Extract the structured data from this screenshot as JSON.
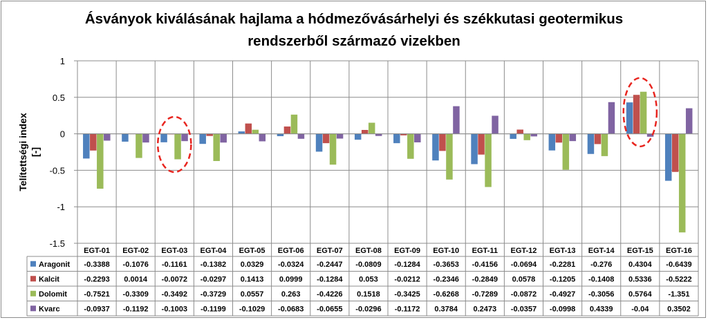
{
  "chart_data": {
    "type": "bar",
    "title_lines": [
      "Ásványok kiválásának hajlama a hódmezővásárhelyi és székkutasi geotermikus",
      "rendszerből származó vizekben"
    ],
    "ylabel_lines": [
      "Telítettségi index",
      "[-]"
    ],
    "ylim": [
      -1.5,
      1
    ],
    "yticks": [
      "1",
      "0.5",
      "0",
      "-0.5",
      "-1",
      "-1.5"
    ],
    "ytick_values": [
      1,
      0.5,
      0,
      -0.5,
      -1,
      -1.5
    ],
    "grid": true,
    "legend": "data-table",
    "categories": [
      "EGT-01",
      "EGT-02",
      "EGT-03",
      "EGT-04",
      "EGT-05",
      "EGT-06",
      "EGT-07",
      "EGT-08",
      "EGT-09",
      "EGT-10",
      "EGT-11",
      "EGT-12",
      "EGT-13",
      "EGT-14",
      "EGT-15",
      "EGT-16"
    ],
    "series": [
      {
        "name": "Aragonit",
        "color": "#4f81bd",
        "values": [
          -0.3388,
          -0.1076,
          -0.1161,
          -0.1382,
          0.0329,
          -0.0324,
          -0.2447,
          -0.0809,
          -0.1284,
          -0.3653,
          -0.4156,
          -0.0694,
          -0.2281,
          -0.276,
          0.4304,
          -0.6439
        ],
        "labels": [
          "-0.3388",
          "-0.1076",
          "-0.1161",
          "-0.1382",
          "0.0329",
          "-0.0324",
          "-0.2447",
          "-0.0809",
          "-0.1284",
          "-0.3653",
          "-0.4156",
          "-0.0694",
          "-0.2281",
          "-0.276",
          "0.4304",
          "-0.6439"
        ]
      },
      {
        "name": "Kalcit",
        "color": "#c0504d",
        "values": [
          -0.2293,
          0.0014,
          -0.0072,
          -0.0297,
          0.1413,
          0.0999,
          -0.1284,
          0.053,
          -0.0212,
          -0.2346,
          -0.2849,
          0.0578,
          -0.1205,
          -0.1408,
          0.5336,
          -0.5222
        ],
        "labels": [
          "-0.2293",
          "0.0014",
          "-0.0072",
          "-0.0297",
          "0.1413",
          "0.0999",
          "-0.1284",
          "0.053",
          "-0.0212",
          "-0.2346",
          "-0.2849",
          "0.0578",
          "-0.1205",
          "-0.1408",
          "0.5336",
          "-0.5222"
        ]
      },
      {
        "name": "Dolomit",
        "color": "#9bbb59",
        "values": [
          -0.7521,
          -0.3309,
          -0.3492,
          -0.3729,
          0.0557,
          0.263,
          -0.4226,
          0.1518,
          -0.3425,
          -0.6268,
          -0.7289,
          -0.0872,
          -0.4927,
          -0.3056,
          0.5764,
          -1.351
        ],
        "labels": [
          "-0.7521",
          "-0.3309",
          "-0.3492",
          "-0.3729",
          "0.0557",
          "0.263",
          "-0.4226",
          "0.1518",
          "-0.3425",
          "-0.6268",
          "-0.7289",
          "-0.0872",
          "-0.4927",
          "-0.3056",
          "0.5764",
          "-1.351"
        ]
      },
      {
        "name": "Kvarc",
        "color": "#8064a2",
        "values": [
          -0.0937,
          -0.1192,
          -0.1003,
          -0.1199,
          -0.1029,
          -0.0683,
          -0.0655,
          -0.0296,
          -0.1172,
          0.3784,
          0.2473,
          -0.0357,
          -0.0998,
          0.4339,
          -0.04,
          0.3502
        ],
        "labels": [
          "-0.0937",
          "-0.1192",
          "-0.1003",
          "-0.1199",
          "-0.1029",
          "-0.0683",
          "-0.0655",
          "-0.0296",
          "-0.1172",
          "0.3784",
          "0.2473",
          "-0.0357",
          "-0.0998",
          "0.4339",
          "-0.04",
          "0.3502"
        ]
      }
    ],
    "highlights": [
      {
        "category": "EGT-03",
        "color": "#e8251f",
        "style": "dashed-ellipse"
      },
      {
        "category": "EGT-15",
        "color": "#e8251f",
        "style": "dashed-ellipse"
      }
    ]
  }
}
